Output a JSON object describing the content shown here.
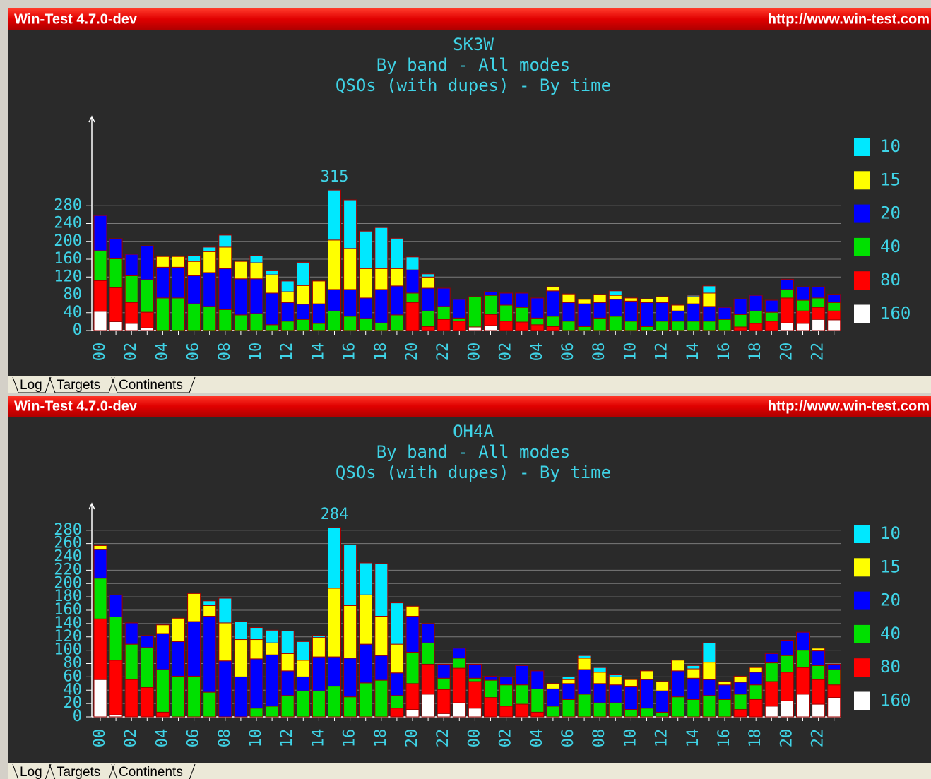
{
  "windows": [
    {
      "title": "Win-Test 4.7.0-dev",
      "url": "http://www.win-test.com",
      "tabs": [
        "Log",
        "Targets",
        "Continents"
      ]
    },
    {
      "title": "Win-Test 4.7.0-dev",
      "url": "http://www.win-test.com",
      "tabs": [
        "Log",
        "Targets",
        "Continents"
      ]
    }
  ],
  "chart_data": [
    {
      "type": "stacked_bar",
      "title": "SK3W",
      "subtitles": [
        "By band - All modes",
        "QSOs (with dupes) - By time"
      ],
      "annotation": "315",
      "categories": [
        "00",
        null,
        "02",
        null,
        "04",
        null,
        "06",
        null,
        "08",
        null,
        "10",
        null,
        "12",
        null,
        "14",
        null,
        "16",
        null,
        "18",
        null,
        "20",
        null,
        "22",
        null,
        "00",
        null,
        "02",
        null,
        "04",
        null,
        "06",
        null,
        "08",
        null,
        "10",
        null,
        "12",
        null,
        "14",
        null,
        "16",
        null,
        "18",
        null,
        "20",
        null,
        "22",
        null
      ],
      "ylim": [
        0,
        480
      ],
      "yticks": [
        0,
        40,
        80,
        120,
        160,
        200,
        240,
        280
      ],
      "grid": true,
      "legend": "right",
      "series": [
        {
          "name": "10",
          "color": "#00e8ff",
          "values": [
            0,
            0,
            0,
            0,
            0,
            0,
            13,
            10,
            27,
            0,
            16,
            9,
            24,
            52,
            0,
            112,
            109,
            84,
            92,
            68,
            29,
            7,
            0,
            0,
            0,
            0,
            0,
            0,
            0,
            0,
            0,
            0,
            0,
            10,
            0,
            0,
            0,
            0,
            3,
            16,
            0,
            0,
            0,
            0,
            0,
            0,
            0,
            0
          ]
        },
        {
          "name": "15",
          "color": "#ffff00",
          "values": [
            0,
            0,
            0,
            0,
            24,
            24,
            32,
            47,
            48,
            39,
            36,
            41,
            24,
            42,
            51,
            111,
            92,
            66,
            47,
            39,
            0,
            25,
            0,
            0,
            0,
            0,
            0,
            0,
            0,
            9,
            19,
            10,
            18,
            9,
            7,
            8,
            13,
            13,
            16,
            30,
            0,
            0,
            0,
            0,
            0,
            0,
            0,
            0
          ]
        },
        {
          "name": "20",
          "color": "#0000ff",
          "values": [
            79,
            45,
            48,
            76,
            69,
            69,
            63,
            76,
            92,
            81,
            78,
            71,
            42,
            34,
            44,
            48,
            60,
            46,
            75,
            65,
            52,
            51,
            41,
            42,
            0,
            8,
            27,
            32,
            45,
            57,
            42,
            51,
            35,
            38,
            45,
            54,
            42,
            23,
            39,
            33,
            27,
            35,
            35,
            27,
            23,
            30,
            25,
            18
          ]
        },
        {
          "name": "40",
          "color": "#00e000",
          "values": [
            67,
            65,
            60,
            73,
            73,
            73,
            60,
            54,
            47,
            35,
            38,
            13,
            21,
            25,
            16,
            44,
            32,
            27,
            17,
            35,
            21,
            35,
            29,
            7,
            68,
            43,
            36,
            33,
            15,
            23,
            21,
            9,
            28,
            32,
            21,
            9,
            21,
            21,
            21,
            21,
            25,
            28,
            28,
            20,
            19,
            24,
            21,
            19
          ]
        },
        {
          "name": "80",
          "color": "#ff0000",
          "values": [
            69,
            76,
            47,
            35,
            0,
            0,
            0,
            0,
            0,
            0,
            0,
            0,
            0,
            0,
            0,
            0,
            0,
            0,
            0,
            0,
            63,
            9,
            25,
            21,
            0,
            25,
            21,
            19,
            13,
            9,
            0,
            0,
            0,
            0,
            0,
            0,
            0,
            0,
            0,
            0,
            0,
            8,
            16,
            21,
            56,
            28,
            27,
            20
          ]
        },
        {
          "name": "160",
          "color": "#ffffff",
          "values": [
            43,
            20,
            16,
            6,
            0,
            0,
            0,
            0,
            0,
            0,
            0,
            0,
            0,
            0,
            0,
            0,
            0,
            0,
            0,
            0,
            0,
            0,
            0,
            0,
            8,
            11,
            0,
            0,
            0,
            0,
            0,
            0,
            0,
            0,
            0,
            0,
            0,
            0,
            0,
            0,
            0,
            0,
            0,
            0,
            17,
            16,
            25,
            24
          ]
        }
      ]
    },
    {
      "type": "stacked_bar",
      "title": "OH4A",
      "subtitles": [
        "By band - All modes",
        "QSOs (with dupes) - By time"
      ],
      "annotation": "284",
      "categories": [
        "00",
        null,
        "02",
        null,
        "04",
        null,
        "06",
        null,
        "08",
        null,
        "10",
        null,
        "12",
        null,
        "14",
        null,
        "16",
        null,
        "18",
        null,
        "20",
        null,
        "22",
        null,
        "00",
        null,
        "02",
        null,
        "04",
        null,
        "06",
        null,
        "08",
        null,
        "10",
        null,
        "12",
        null,
        "14",
        null,
        "16",
        null,
        "18",
        null,
        "20",
        null,
        "22",
        null
      ],
      "ylim": [
        0,
        320
      ],
      "yticks": [
        0,
        20,
        40,
        60,
        80,
        100,
        120,
        140,
        160,
        180,
        200,
        220,
        240,
        260,
        280
      ],
      "grid": true,
      "legend": "right",
      "series": [
        {
          "name": "10",
          "color": "#00e8ff",
          "values": [
            0,
            0,
            0,
            0,
            0,
            0,
            0,
            7,
            37,
            27,
            18,
            19,
            34,
            28,
            3,
            91,
            91,
            48,
            79,
            62,
            0,
            0,
            0,
            0,
            0,
            0,
            0,
            0,
            0,
            0,
            4,
            4,
            7,
            3,
            0,
            0,
            0,
            0,
            5,
            29,
            0,
            0,
            0,
            0,
            0,
            0,
            0,
            0
          ]
        },
        {
          "name": "15",
          "color": "#ffff00",
          "values": [
            6,
            0,
            0,
            0,
            13,
            35,
            42,
            16,
            57,
            56,
            29,
            18,
            26,
            25,
            29,
            103,
            79,
            74,
            59,
            43,
            15,
            0,
            0,
            0,
            0,
            0,
            0,
            0,
            0,
            8,
            6,
            17,
            17,
            12,
            11,
            13,
            14,
            16,
            14,
            26,
            5,
            9,
            7,
            0,
            0,
            0,
            4,
            0
          ]
        },
        {
          "name": "20",
          "color": "#0000ff",
          "values": [
            43,
            33,
            32,
            18,
            54,
            52,
            82,
            114,
            84,
            60,
            74,
            77,
            37,
            21,
            51,
            44,
            58,
            58,
            37,
            34,
            54,
            29,
            21,
            15,
            21,
            6,
            12,
            29,
            27,
            26,
            24,
            37,
            29,
            27,
            34,
            43,
            32,
            39,
            32,
            24,
            22,
            18,
            19,
            14,
            23,
            27,
            22,
            8
          ]
        },
        {
          "name": "40",
          "color": "#00e000",
          "values": [
            61,
            65,
            53,
            60,
            64,
            61,
            61,
            37,
            0,
            0,
            13,
            16,
            32,
            39,
            39,
            46,
            30,
            51,
            55,
            19,
            47,
            32,
            17,
            15,
            5,
            26,
            32,
            29,
            35,
            16,
            26,
            34,
            21,
            21,
            11,
            13,
            7,
            30,
            26,
            32,
            26,
            23,
            22,
            28,
            25,
            26,
            21,
            23
          ]
        },
        {
          "name": "80",
          "color": "#ff0000",
          "values": [
            91,
            82,
            56,
            44,
            7,
            0,
            0,
            0,
            0,
            0,
            0,
            0,
            0,
            0,
            0,
            0,
            0,
            0,
            0,
            13,
            39,
            45,
            36,
            52,
            40,
            29,
            16,
            19,
            7,
            0,
            0,
            0,
            0,
            0,
            0,
            0,
            0,
            0,
            0,
            0,
            0,
            11,
            26,
            37,
            43,
            40,
            37,
            19
          ]
        },
        {
          "name": "160",
          "color": "#ffffff",
          "values": [
            56,
            3,
            0,
            0,
            0,
            0,
            0,
            0,
            0,
            0,
            0,
            0,
            0,
            0,
            0,
            0,
            0,
            0,
            0,
            0,
            11,
            34,
            5,
            21,
            13,
            0,
            0,
            0,
            0,
            0,
            0,
            0,
            0,
            0,
            0,
            0,
            0,
            0,
            0,
            0,
            0,
            0,
            0,
            16,
            24,
            34,
            19,
            29
          ]
        }
      ]
    }
  ]
}
